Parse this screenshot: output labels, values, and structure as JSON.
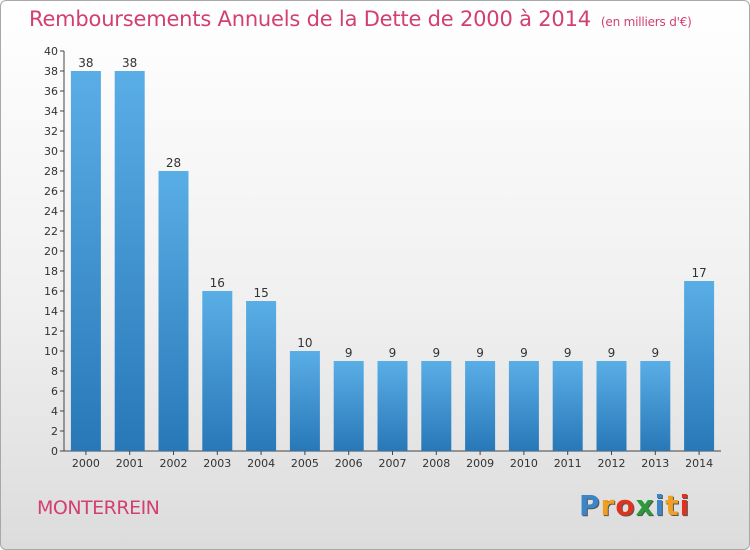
{
  "title": "Remboursements Annuels de la Dette de 2000 à 2014",
  "unit_note": "(en milliers d'€)",
  "commune": "MONTERREIN",
  "logo": {
    "letters": [
      "P",
      "r",
      "o",
      "x",
      "i",
      "t",
      "i"
    ],
    "colors": [
      "#3a86c8",
      "#f0a020",
      "#e0331f",
      "#2a9a3a",
      "#3a86c8",
      "#f0a020",
      "#e0331f"
    ]
  },
  "colors": {
    "bar": "#2f87c9",
    "bar_light": "#5aaee6",
    "title": "#d23f70"
  },
  "chart_data": {
    "type": "bar",
    "title": "Remboursements Annuels de la Dette de 2000 à 2014",
    "categories": [
      "2000",
      "2001",
      "2002",
      "2003",
      "2004",
      "2005",
      "2006",
      "2007",
      "2008",
      "2009",
      "2010",
      "2011",
      "2012",
      "2013",
      "2014"
    ],
    "values": [
      38,
      38,
      28,
      16,
      15,
      10,
      9,
      9,
      9,
      9,
      9,
      9,
      9,
      9,
      17
    ],
    "data_labels": [
      "38",
      "38",
      "28",
      "16",
      "15",
      "10",
      "9",
      "9",
      "9",
      "9",
      "9",
      "9",
      "9",
      "9",
      "17"
    ],
    "ylim": [
      0,
      40
    ],
    "yticks": [
      0,
      2,
      4,
      6,
      8,
      10,
      12,
      14,
      16,
      18,
      20,
      22,
      24,
      26,
      28,
      30,
      32,
      34,
      36,
      38,
      40
    ],
    "grid": false,
    "xlabel": "",
    "ylabel": ""
  }
}
